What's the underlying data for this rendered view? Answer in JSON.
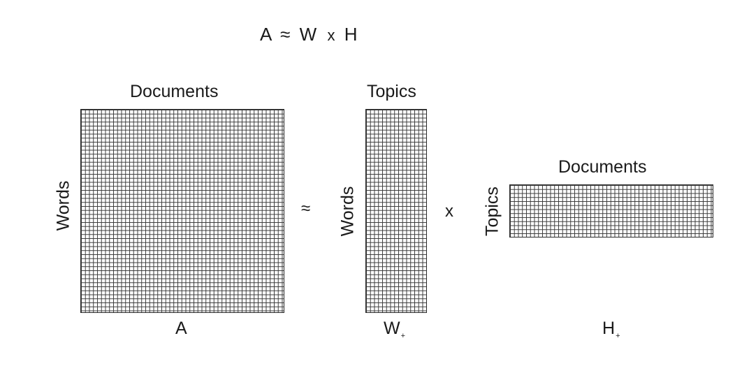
{
  "title": {
    "lhs": "A",
    "approx": "≈",
    "w": "W",
    "times": "x",
    "h": "H"
  },
  "matrix_a": {
    "top_label": "Documents",
    "side_label": "Words",
    "bottom_label": "A"
  },
  "approx_symbol": "≈",
  "matrix_w": {
    "top_label": "Topics",
    "side_label": "Words",
    "bottom_label": "W",
    "bottom_subscript": "+"
  },
  "times_symbol": "x",
  "matrix_h": {
    "top_label": "Documents",
    "side_label": "Topics",
    "bottom_label": "H",
    "bottom_subscript": "+"
  }
}
